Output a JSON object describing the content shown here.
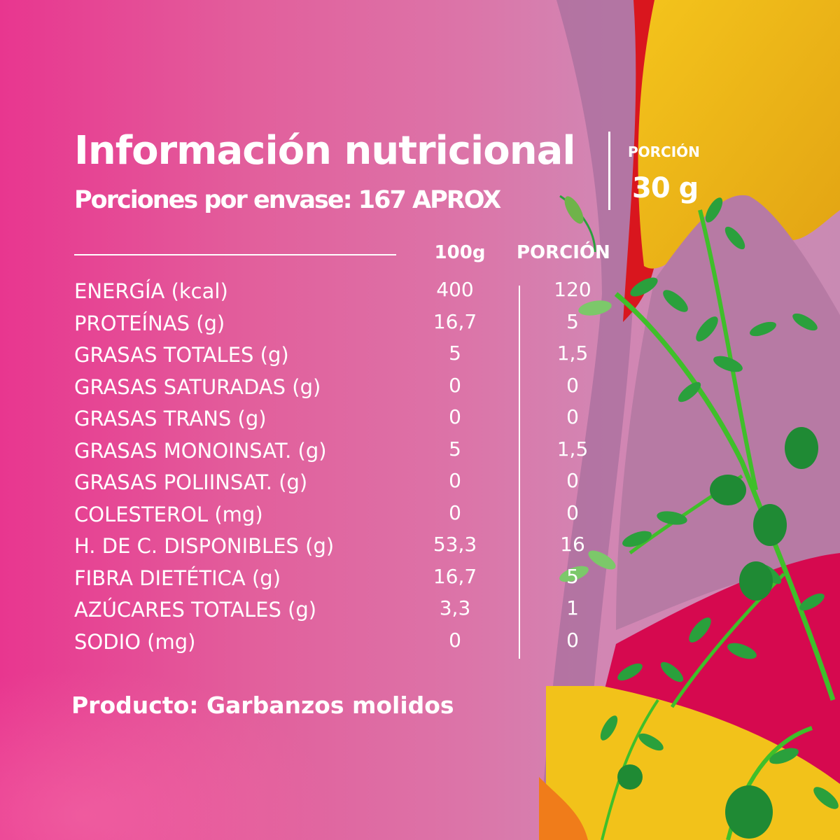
{
  "title": "Información nutricional",
  "subtitle": "Porciones por envase: 167 APROX",
  "portion": {
    "label": "PORCIÓN",
    "value": "30 g"
  },
  "columns": {
    "per_100g": "100g",
    "per_portion": "PORCIÓN"
  },
  "rows": [
    {
      "label": "ENERGÍA (kcal)",
      "per_100g": "400",
      "per_portion": "120"
    },
    {
      "label": "PROTEÍNAS (g)",
      "per_100g": "16,7",
      "per_portion": "5"
    },
    {
      "label": "GRASAS TOTALES (g)",
      "per_100g": "5",
      "per_portion": "1,5"
    },
    {
      "label": "GRASAS SATURADAS (g)",
      "per_100g": "0",
      "per_portion": "0"
    },
    {
      "label": "GRASAS TRANS (g)",
      "per_100g": "0",
      "per_portion": "0"
    },
    {
      "label": "GRASAS MONOINSAT. (g)",
      "per_100g": "5",
      "per_portion": "1,5"
    },
    {
      "label": "GRASAS POLIINSAT. (g)",
      "per_100g": "0",
      "per_portion": "0"
    },
    {
      "label": "COLESTEROL (mg)",
      "per_100g": "0",
      "per_portion": "0"
    },
    {
      "label": "H. DE C. DISPONIBLES (g)",
      "per_100g": "53,3",
      "per_portion": "16"
    },
    {
      "label": "FIBRA DIETÉTICA (g)",
      "per_100g": "16,7",
      "per_portion": "5"
    },
    {
      "label": "AZÚCARES TOTALES (g)",
      "per_100g": "3,3",
      "per_portion": "1"
    },
    {
      "label": "SODIO (mg)",
      "per_100g": "0",
      "per_portion": "0"
    }
  ],
  "product": "Producto: Garbanzos molidos",
  "colors": {
    "pink": "#e8368f",
    "mauve": "#a86f9e",
    "red": "#d9161e",
    "yellow": "#f2c21a",
    "orange": "#f07c1a",
    "crimson": "#d6094f",
    "leaf": "#2aa03c",
    "stem": "#3fbf2a"
  },
  "icons": {
    "decoration": "chickpea-plant-icon"
  }
}
